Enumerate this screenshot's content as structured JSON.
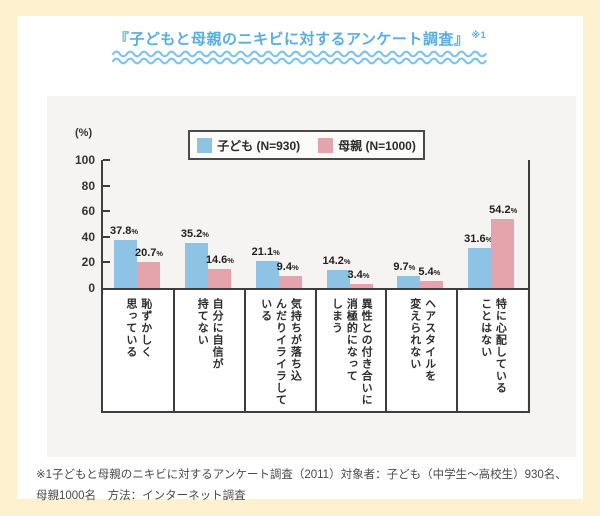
{
  "header": {
    "title": "『子どもと母親のニキビに対するアンケート調査』",
    "note_marker": "※1"
  },
  "footer": {
    "note": "※1子どもと母親のニキビに対するアンケート調査（2011）対象者：子ども（中学生～高校生）930名、母親1000名　方法：インターネット調査"
  },
  "colors": {
    "accent_blue": "#58ADE3",
    "wave_blue": "#7EC3EF",
    "child_bar": "#8FC3E5",
    "mother_bar": "#E5A3AC",
    "panel_bg": "#F5F4F2",
    "page_border": "#FCF0CE",
    "axis": "#3E3E3E"
  },
  "chart_data": {
    "type": "bar",
    "title": "子どもと母親のニキビに対するアンケート調査",
    "y_axis_label": "(%)",
    "unit": "%",
    "ylim": [
      0,
      100
    ],
    "y_ticks": [
      0,
      20,
      40,
      60,
      80,
      100
    ],
    "grid": false,
    "legend_position": "top",
    "categories": [
      "恥ずかしく思っている",
      "自分に自信が持てない",
      "気持ちが落ち込んだりイライラしている",
      "異性との付き合いに消極的になってしまう",
      "ヘアスタイルを変えられない",
      "特に心配していることはない"
    ],
    "category_lines": [
      [
        "恥ずかしく",
        "思っている"
      ],
      [
        "自分に自信が",
        "持てない"
      ],
      [
        "気持ちが落ち込",
        "んだりイライラして",
        "いる"
      ],
      [
        "異性との付き合いに",
        "消極的になって",
        "しまう"
      ],
      [
        "ヘアスタイルを",
        "変えられない"
      ],
      [
        "特に心配している",
        "ことはない"
      ]
    ],
    "series": [
      {
        "name": "子ども (N=930)",
        "color": "#8FC3E5",
        "values": [
          37.8,
          35.2,
          21.1,
          14.2,
          9.7,
          31.6
        ]
      },
      {
        "name": "母親 (N=1000)",
        "color": "#E5A3AC",
        "values": [
          20.7,
          14.6,
          9.4,
          3.4,
          5.4,
          54.2
        ]
      }
    ]
  }
}
